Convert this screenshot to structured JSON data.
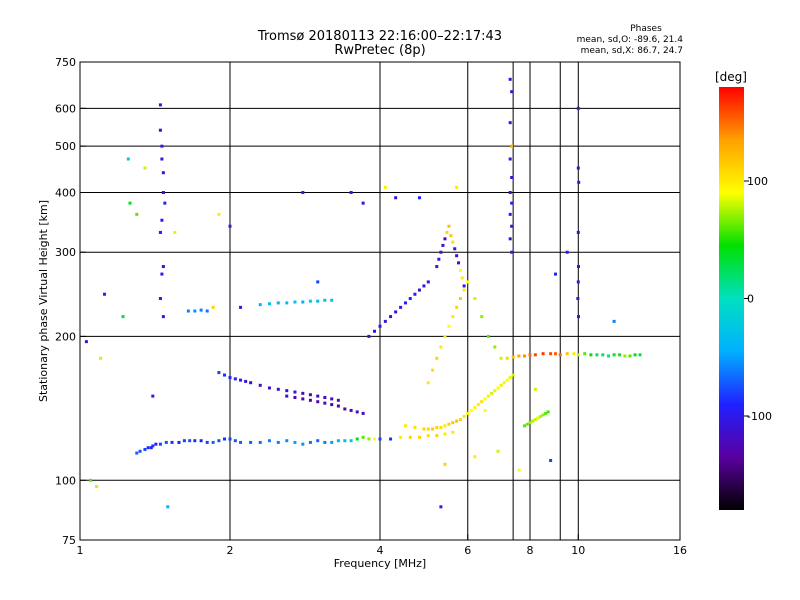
{
  "chart_data": {
    "type": "scatter",
    "title": "Tromsø 20180113 22:16:00–22:17:43",
    "subtitle": "RwPretec (8p)",
    "xlabel": "Frequency [MHz]",
    "ylabel": "Stationary phase Virtual Height [km]",
    "x_scale": "log",
    "y_scale": "log",
    "xlim": [
      1,
      16
    ],
    "ylim": [
      75,
      750
    ],
    "x_ticks": [
      1,
      2,
      4,
      6,
      8,
      10,
      16
    ],
    "x_tick_labels": [
      "1",
      "2",
      "4",
      "6",
      "8",
      "10",
      "16"
    ],
    "x_grid": [
      2,
      4,
      6,
      7.4,
      8,
      9.2,
      10
    ],
    "y_ticks": [
      75,
      100,
      200,
      300,
      400,
      500,
      600,
      750
    ],
    "y_tick_labels": [
      "75",
      "100",
      "200",
      "300",
      "400",
      "500",
      "600",
      "750"
    ],
    "y_grid": [
      100,
      200,
      300,
      400,
      500,
      600
    ],
    "grid": true,
    "phase_stats": {
      "title": "Phases",
      "line_o": "mean, sd,O: -89.6, 21.4",
      "line_x": "mean, sd,X:  86.7, 24.7"
    },
    "colorbar": {
      "label": "[deg]",
      "range": [
        -180,
        180
      ],
      "ticks": [
        100,
        0,
        -100
      ],
      "tick_labels": [
        "100",
        "0",
        "-100"
      ],
      "colormap": [
        "#000000",
        "#5a00a0",
        "#2020ff",
        "#00b0ff",
        "#00e0c0",
        "#00e000",
        "#ffff00",
        "#ffa000",
        "#ff0000"
      ]
    },
    "series": [
      {
        "x": [
          1.3,
          1.32,
          1.35,
          1.37,
          1.39,
          1.4,
          1.42,
          1.45,
          1.49,
          1.53,
          1.58,
          1.62,
          1.66,
          1.7,
          1.75,
          1.8,
          1.85,
          1.9,
          1.95,
          2.0,
          2.05,
          2.1,
          2.2,
          2.3,
          2.4,
          2.5,
          2.6,
          2.7,
          2.8,
          2.9,
          3.0,
          3.1,
          3.2,
          3.3,
          3.4,
          3.5,
          3.6,
          3.7,
          3.8,
          3.9,
          4.0,
          4.2,
          4.4,
          4.6,
          4.8,
          5.0,
          5.2,
          5.4,
          5.6
        ],
        "y": [
          114,
          115,
          116,
          117,
          117,
          118,
          119,
          119,
          120,
          120,
          120,
          121,
          121,
          121,
          121,
          120,
          120,
          121,
          122,
          122,
          121,
          120,
          120,
          120,
          121,
          120,
          121,
          120,
          119,
          120,
          121,
          120,
          120,
          121,
          121,
          121,
          122,
          123,
          122,
          122,
          122,
          122,
          123,
          123,
          123,
          124,
          124,
          125,
          126
        ],
        "phase": [
          -70,
          -75,
          -80,
          -85,
          -90,
          -85,
          -90,
          -80,
          -75,
          -85,
          -95,
          -80,
          -75,
          -85,
          -90,
          -80,
          -70,
          -75,
          -85,
          -80,
          -75,
          -70,
          -70,
          -65,
          -60,
          -60,
          -55,
          -50,
          -55,
          -65,
          -70,
          -60,
          -50,
          -40,
          -30,
          -20,
          40,
          60,
          70,
          90,
          -80,
          -85,
          100,
          110,
          110,
          105,
          110,
          100,
          100
        ]
      },
      {
        "x": [
          1.9,
          1.95,
          2.0,
          2.05,
          2.1,
          2.15,
          2.2,
          2.3,
          2.4,
          2.5,
          2.6,
          2.7,
          2.8,
          2.9,
          3.0,
          3.1,
          3.2,
          3.3
        ],
        "y": [
          168,
          166,
          164,
          163,
          162,
          161,
          160,
          158,
          156,
          155,
          154,
          153,
          152,
          151,
          150,
          149,
          148,
          147
        ],
        "phase": [
          -80,
          -85,
          -90,
          -95,
          -100,
          -105,
          -110,
          -115,
          -120,
          -115,
          -110,
          -105,
          -120,
          -125,
          -125,
          -120,
          -115,
          -110
        ]
      },
      {
        "x": [
          2.6,
          2.7,
          2.8,
          2.9,
          3.0,
          3.1,
          3.2,
          3.3,
          3.4,
          3.5,
          3.6,
          3.7
        ],
        "y": [
          150,
          149,
          148,
          147,
          146,
          145,
          144,
          143,
          141,
          140,
          139,
          138
        ],
        "phase": [
          -120,
          -125,
          -130,
          -130,
          -125,
          -120,
          -130,
          -135,
          -130,
          -125,
          -120,
          -115
        ]
      },
      {
        "x": [
          1.65,
          1.7,
          1.75,
          1.8,
          2.3,
          2.4,
          2.5,
          2.6,
          2.7,
          2.8,
          2.9,
          3.0,
          3.1,
          3.2
        ],
        "y": [
          226,
          226,
          227,
          226,
          233,
          234,
          235,
          235,
          236,
          236,
          237,
          237,
          238,
          238
        ],
        "phase": [
          -60,
          -55,
          -60,
          -65,
          -40,
          -35,
          -45,
          -30,
          -25,
          -40,
          -20,
          -35,
          -30,
          -25
        ]
      },
      {
        "x": [
          4.5,
          4.7,
          4.9,
          5.0,
          5.1,
          5.2,
          5.3,
          5.4,
          5.5,
          5.6,
          5.7,
          5.8,
          5.9,
          6.0,
          6.1,
          6.2,
          6.3,
          6.4,
          6.5,
          6.6,
          6.7,
          6.8,
          6.9,
          7.0,
          7.1,
          7.2,
          7.3,
          7.4
        ],
        "y": [
          130,
          129,
          128,
          128,
          128,
          129,
          129,
          130,
          131,
          132,
          133,
          134,
          136,
          138,
          140,
          142,
          144,
          146,
          148,
          150,
          152,
          154,
          156,
          158,
          160,
          162,
          164,
          166
        ],
        "phase": [
          100,
          105,
          110,
          110,
          115,
          110,
          105,
          100,
          110,
          115,
          120,
          110,
          100,
          95,
          90,
          95,
          100,
          105,
          90,
          85,
          80,
          85,
          90,
          100,
          95,
          90,
          85,
          80
        ]
      },
      {
        "x": [
          7.2,
          7.4,
          7.6,
          7.8,
          8.0,
          8.2,
          8.5,
          8.8,
          9.0,
          9.2,
          9.5,
          9.8,
          10.0,
          10.3,
          10.6,
          10.9,
          11.2,
          11.5,
          11.8,
          12.1,
          12.4,
          12.7,
          13.0,
          13.3
        ],
        "y": [
          180,
          181,
          182,
          182,
          183,
          183,
          184,
          184,
          184,
          183,
          184,
          184,
          183,
          184,
          183,
          183,
          183,
          182,
          183,
          183,
          182,
          182,
          183,
          183
        ],
        "phase": [
          110,
          120,
          130,
          140,
          150,
          160,
          165,
          160,
          155,
          150,
          120,
          100,
          80,
          60,
          40,
          20,
          20,
          10,
          30,
          50,
          70,
          60,
          40,
          30
        ]
      },
      {
        "x": [
          7.8,
          7.9,
          8.0,
          8.1,
          8.2,
          8.3,
          8.4,
          8.5,
          8.6,
          8.7
        ],
        "y": [
          130,
          131,
          132,
          133,
          134,
          135,
          136,
          137,
          138,
          139
        ],
        "phase": [
          60,
          65,
          70,
          75,
          80,
          85,
          75,
          70,
          60,
          55
        ]
      },
      {
        "x": [
          3.8,
          3.9,
          4.0,
          4.1,
          4.2,
          4.3,
          4.4,
          4.5,
          4.6,
          4.7,
          4.8,
          4.9,
          5.0
        ],
        "y": [
          200,
          205,
          210,
          215,
          220,
          225,
          230,
          235,
          240,
          245,
          250,
          255,
          260
        ],
        "phase": [
          -120,
          -110,
          -100,
          -105,
          -110,
          -115,
          -100,
          -95,
          -90,
          -100,
          -110,
          -105,
          -100
        ]
      },
      {
        "x": [
          5.0,
          5.1,
          5.2,
          5.3,
          5.4,
          5.5,
          5.6,
          5.7,
          5.8,
          5.9,
          6.0,
          6.2,
          6.4,
          6.6,
          6.8,
          7.0
        ],
        "y": [
          160,
          170,
          180,
          190,
          200,
          210,
          220,
          230,
          240,
          250,
          260,
          240,
          220,
          200,
          190,
          180
        ],
        "phase": [
          100,
          105,
          110,
          100,
          95,
          90,
          100,
          110,
          115,
          100,
          90,
          80,
          70,
          60,
          70,
          80
        ]
      },
      {
        "x": [
          5.2,
          5.25,
          5.3,
          5.35,
          5.4,
          5.45,
          5.5,
          5.55,
          5.6,
          5.65,
          5.7,
          5.75,
          5.8,
          5.85,
          5.9
        ],
        "y": [
          280,
          290,
          300,
          310,
          320,
          330,
          340,
          325,
          315,
          305,
          295,
          285,
          275,
          265,
          255
        ],
        "phase": [
          -100,
          -105,
          -110,
          -115,
          -120,
          110,
          120,
          115,
          105,
          -110,
          -115,
          -120,
          90,
          100,
          -100
        ]
      },
      {
        "x": [
          1.45,
          1.45,
          1.46,
          1.46,
          1.47,
          1.47,
          1.48,
          1.46,
          1.45,
          1.47,
          1.46,
          1.45,
          1.47
        ],
        "y": [
          610,
          540,
          500,
          470,
          440,
          400,
          380,
          350,
          330,
          280,
          270,
          240,
          220
        ],
        "phase": [
          -110,
          -115,
          -100,
          -105,
          -110,
          -120,
          -100,
          -95,
          -110,
          -115,
          -100,
          -105,
          -110
        ]
      },
      {
        "x": [
          7.3,
          7.35,
          7.3,
          7.35,
          7.3,
          7.35,
          7.3,
          7.35,
          7.3,
          7.35,
          7.3,
          7.35
        ],
        "y": [
          690,
          650,
          560,
          500,
          470,
          430,
          400,
          380,
          360,
          340,
          320,
          300
        ],
        "phase": [
          -110,
          -115,
          -100,
          130,
          -105,
          -110,
          -120,
          -100,
          -95,
          -110,
          -115,
          -100
        ]
      },
      {
        "x": [
          10.0,
          10.0,
          10.02,
          10.0,
          10.01,
          10.0,
          9.98,
          10.01
        ],
        "y": [
          600,
          450,
          420,
          330,
          280,
          260,
          240,
          220
        ],
        "phase": [
          -100,
          -110,
          -90,
          -115,
          -100,
          -105,
          -110,
          -95
        ]
      },
      {
        "x": [
          1.05,
          1.08,
          1.1,
          1.22,
          1.25,
          1.26,
          1.3,
          1.35,
          1.5,
          1.9,
          2.0,
          2.8,
          3.5,
          4.1,
          4.3,
          5.3,
          5.4,
          6.2,
          6.9,
          7.6,
          8.8,
          9.0,
          11.8,
          1.12,
          1.55,
          1.85,
          2.1,
          6.5,
          8.2,
          9.5,
          1.03,
          1.4,
          3.0,
          3.7,
          4.8,
          5.7
        ],
        "y": [
          100,
          97,
          180,
          220,
          470,
          380,
          360,
          450,
          88,
          360,
          340,
          400,
          400,
          410,
          390,
          88,
          108,
          112,
          115,
          105,
          110,
          270,
          215,
          245,
          330,
          230,
          230,
          140,
          155,
          300,
          195,
          150,
          260,
          380,
          390,
          410
        ],
        "phase": [
          60,
          80,
          80,
          30,
          -20,
          40,
          60,
          80,
          -40,
          100,
          -100,
          -90,
          -100,
          100,
          -110,
          -100,
          110,
          100,
          80,
          90,
          -80,
          -90,
          -60,
          -90,
          100,
          110,
          -100,
          90,
          80,
          -100,
          -110,
          -90,
          -80,
          -110,
          -90,
          100
        ]
      }
    ]
  }
}
